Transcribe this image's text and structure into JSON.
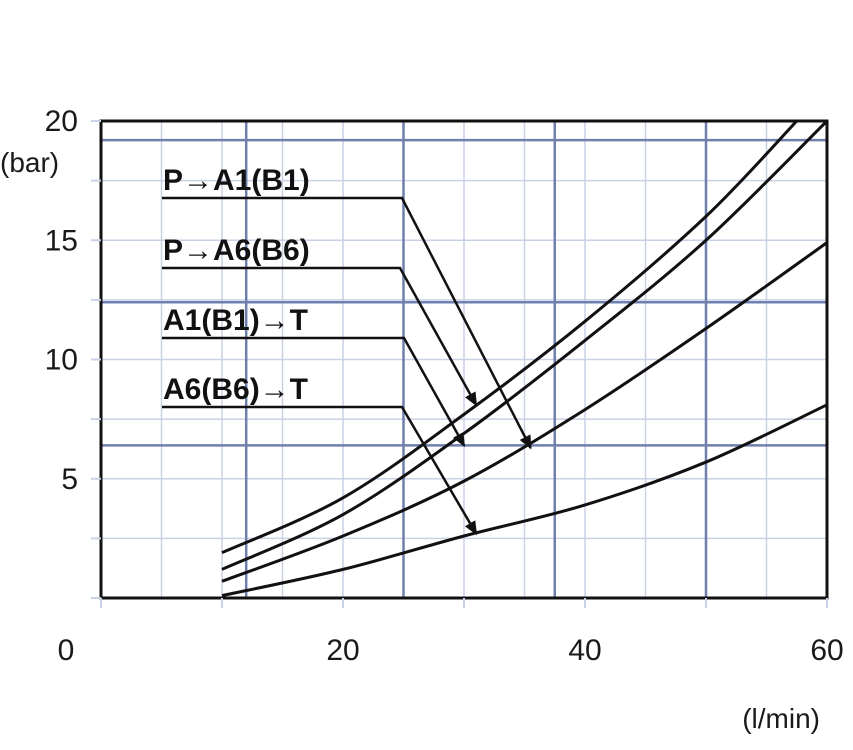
{
  "chart_data": {
    "type": "line",
    "title": "",
    "xlabel": "(l/min)",
    "ylabel": "(bar)",
    "xlim": [
      0,
      60
    ],
    "ylim": [
      0,
      20
    ],
    "xticks": [
      "0",
      "20",
      "40",
      "60"
    ],
    "yticks": [
      "5",
      "10",
      "15",
      "20"
    ],
    "grid": true,
    "series": [
      {
        "name": "P→A1(B1)",
        "x": [
          10,
          20,
          30,
          40,
          50,
          57.5
        ],
        "y": [
          1.9,
          4.2,
          7.7,
          11.6,
          16.0,
          20.0
        ]
      },
      {
        "name": "P→A6(B6)",
        "x": [
          10,
          20,
          30,
          40,
          50,
          60
        ],
        "y": [
          1.2,
          3.5,
          6.9,
          10.8,
          15.0,
          20.0
        ]
      },
      {
        "name": "A1(B1)→T",
        "x": [
          10,
          20,
          30,
          40,
          50,
          60
        ],
        "y": [
          0.7,
          2.6,
          4.9,
          7.9,
          11.3,
          14.9
        ]
      },
      {
        "name": "A6(B6)→T",
        "x": [
          10,
          20,
          30,
          40,
          50,
          60
        ],
        "y": [
          0.1,
          1.2,
          2.6,
          3.9,
          5.7,
          8.1
        ]
      }
    ],
    "legend_position": "top-left",
    "legend_arrows": [
      {
        "series": "P→A1(B1)",
        "points_to": [
          35.5,
          6.3
        ]
      },
      {
        "series": "P→A6(B6)",
        "points_to": [
          31,
          8.1
        ]
      },
      {
        "series": "A1(B1)→T",
        "points_to": [
          30,
          6.4
        ]
      },
      {
        "series": "A6(B6)→T",
        "points_to": [
          31,
          2.7
        ]
      }
    ],
    "colors": {
      "grid_major": "#6f7fae",
      "grid_minor": "#c9d1e6",
      "curve": "#111111"
    }
  }
}
